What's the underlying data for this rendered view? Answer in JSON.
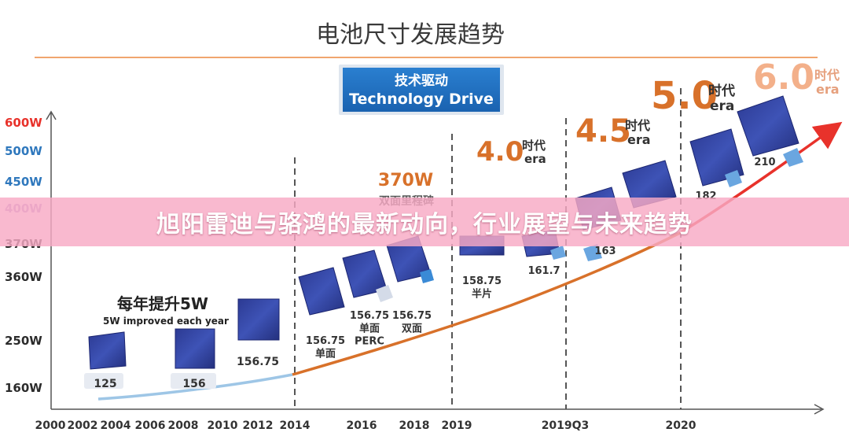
{
  "overlay_title": "旭阳雷迪与骆鸿的最新动向，行业展望与未来趋势",
  "chart_data": {
    "type": "line",
    "title": "电池尺寸发展趋势",
    "badge": {
      "line1": "技术驱动",
      "line2": "Technology Drive"
    },
    "y_ticks": [
      {
        "label": "160W",
        "color": "#2b2b2b"
      },
      {
        "label": "250W",
        "color": "#2b2b2b"
      },
      {
        "label": "360W",
        "color": "#2b2b2b"
      },
      {
        "label": "370W",
        "color": "#2b2b2b"
      },
      {
        "label": "400W",
        "color": "#b59ad4"
      },
      {
        "label": "450W",
        "color": "#2f78bd"
      },
      {
        "label": "500W",
        "color": "#2f78bd"
      },
      {
        "label": "600W",
        "color": "#e8322b"
      }
    ],
    "x_ticks": [
      "2000",
      "2002",
      "2004",
      "2006",
      "2008",
      "2010",
      "2012",
      "2014",
      "2016",
      "2018",
      "2019",
      "2019Q3",
      "2020"
    ],
    "series": [
      {
        "segment": "early",
        "color": "#9ec6e6"
      },
      {
        "segment": "mid",
        "color": "#d8712a"
      },
      {
        "segment": "late",
        "color": "#e8322b"
      }
    ],
    "annotations": {
      "improve_cn": "每年提升5W",
      "improve_en": "5W improved each year",
      "milestone_power": "370W",
      "milestone_label": "双面里程碑",
      "eras": [
        {
          "num": "4.0",
          "cn": "时代",
          "en": "era",
          "color": "#d8712a"
        },
        {
          "num": "4.5",
          "cn": "时代",
          "en": "era",
          "color": "#d8712a"
        },
        {
          "num": "5.0",
          "cn": "时代",
          "en": "era",
          "color": "#d8712a"
        },
        {
          "num": "6.0",
          "cn": "时代",
          "en": "era",
          "color": "#f3b08a"
        }
      ]
    },
    "wafers": [
      {
        "size": "125",
        "lines": [
          "125"
        ]
      },
      {
        "size": "156",
        "lines": [
          "156"
        ]
      },
      {
        "size": "156.75",
        "lines": [
          "156.75"
        ]
      },
      {
        "size": "156.75 单面",
        "lines": [
          "156.75",
          "单面"
        ]
      },
      {
        "size": "156.75 单面 PERC",
        "lines": [
          "156.75",
          "单面",
          "PERC"
        ]
      },
      {
        "size": "156.75 双面",
        "lines": [
          "156.75",
          "双面"
        ]
      },
      {
        "size": "158.75 半片",
        "lines": [
          "158.75",
          "半片"
        ]
      },
      {
        "size": "161.7",
        "lines": [
          "161.7"
        ]
      },
      {
        "size": "163",
        "lines": [
          "163"
        ]
      },
      {
        "size": "182",
        "lines": [
          "182"
        ]
      },
      {
        "size": "210",
        "lines": [
          "210"
        ]
      }
    ]
  }
}
